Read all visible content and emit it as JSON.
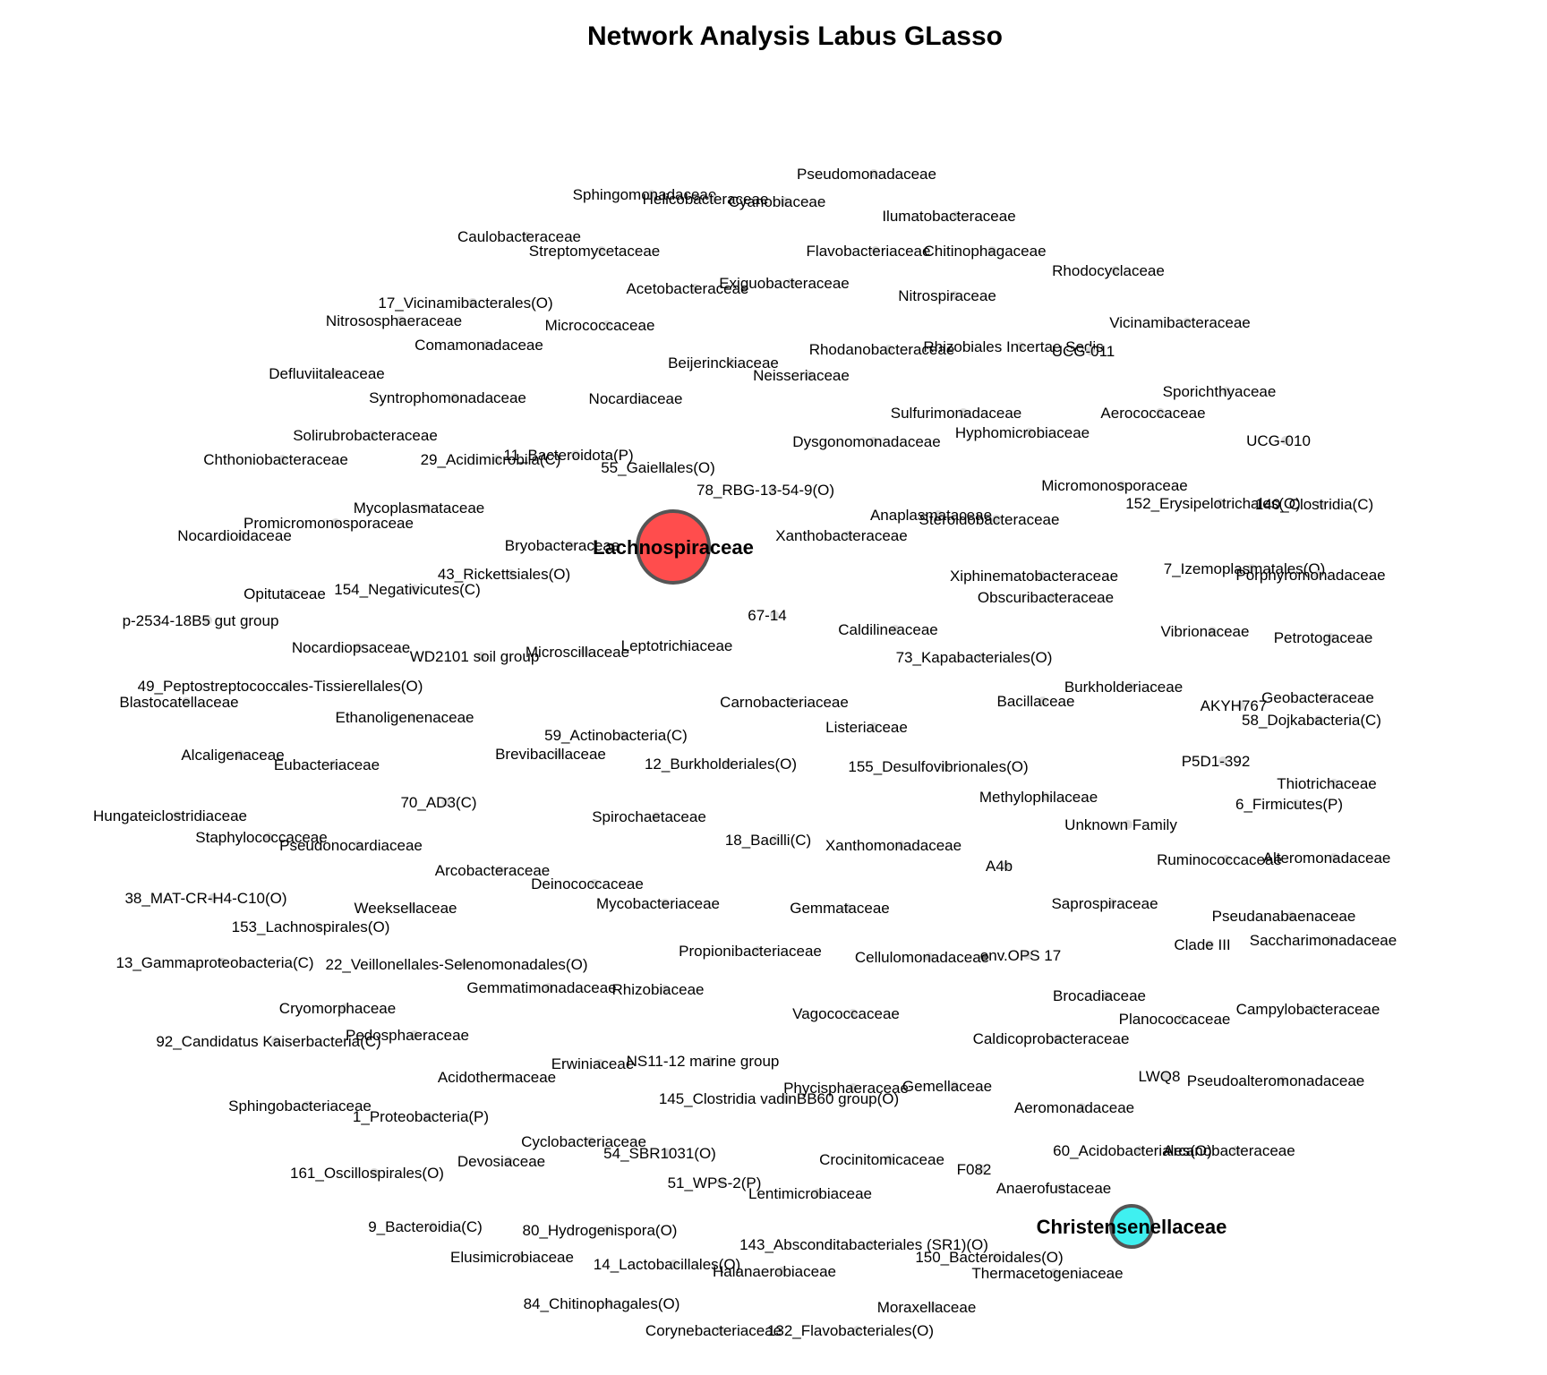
{
  "title": "Network Analysis Labus GLasso",
  "hubs": [
    {
      "label": "Lachnospiraceae",
      "color": "#ff4d4d"
    },
    {
      "label": "Christensenellaceae",
      "color": "#3ff0f0"
    }
  ],
  "nodes": [
    "Pseudomonadaceae",
    "Sphingomonadaceae",
    "Helicobacteraceae",
    "Cyanobiaceae",
    "Ilumatobacteraceae",
    "Caulobacteraceae",
    "Streptomycetaceae",
    "Flavobacteriaceae",
    "Chitinophagaceae",
    "Rhodocyclaceae",
    "Acetobacteraceae",
    "Exiguobacteraceae",
    "Nitrospiraceae",
    "17_Vicinamibacterales(O)",
    "Nitrososphaeraceae",
    "Micrococcaceae",
    "Vicinamibacteraceae",
    "Comamonadaceae",
    "Beijerinckiaceae",
    "Rhodanobacteraceae",
    "Rhizobiales Incertae Sedis",
    "UCG-011",
    "Defluviitaleaceae",
    "Neisseriaceae",
    "Syntrophomonadaceae",
    "Nocardiaceae",
    "Sporichthyaceae",
    "Sulfurimonadaceae",
    "Aerococcaceae",
    "Solirubrobacteraceae",
    "Hyphomicrobiaceae",
    "UCG-010",
    "Chthoniobacteraceae",
    "29_Acidimicrobiia(C)",
    "11_Bacteroidota(P)",
    "Dysgonomonadaceae",
    "55_Gaiellales(O)",
    "Micromonosporaceae",
    "78_RBG-13-54-9(O)",
    "152_Erysipelotrichales(O)",
    "140_Clostridia(C)",
    "Mycoplasmataceae",
    "Anaplasmataceae",
    "Steroidobacteraceae",
    "Promicromonosporaceae",
    "Nocardioidaceae",
    "Xanthobacteraceae",
    "Bryobacteraceae",
    "7_Izemoplasmatales(O)",
    "Xiphinematobacteraceae",
    "Porphyromonadaceae",
    "43_Rickettsiales(O)",
    "154_Negativicutes(C)",
    "Opitutaceae",
    "Obscuribacteraceae",
    "67-14",
    "p-2534-18B5 gut group",
    "Caldilineaceae",
    "Vibrionaceae",
    "Petrotogaceae",
    "Nocardiopsaceae",
    "Leptotrichiaceae",
    "Microscillaceae",
    "WD2101 soil group",
    "73_Kapabacteriales(O)",
    "49_Peptostreptococcales-Tissierellales(O)",
    "Burkholderiaceae",
    "Blastocatellaceae",
    "Carnobacteriaceae",
    "Bacillaceae",
    "Geobacteraceae",
    "AKYH767",
    "Ethanoligenenaceae",
    "58_Dojkabacteria(C)",
    "Listeriaceae",
    "59_Actinobacteria(C)",
    "Brevibacillaceae",
    "Alcaligenaceae",
    "Eubacteriaceae",
    "12_Burkholderiales(O)",
    "155_Desulfovibrionales(O)",
    "P5D1-392",
    "Thiotrichaceae",
    "Methylophilaceae",
    "70_AD3(C)",
    "6_Firmicutes(P)",
    "Hungateiclostridiaceae",
    "Spirochaetaceae",
    "Unknown Family",
    "Staphylococcaceae",
    "18_Bacilli(C)",
    "Pseudonocardiaceae",
    "Xanthomonadaceae",
    "Ruminococcaceae",
    "Alteromonadaceae",
    "A4b",
    "Arcobacteraceae",
    "Deinococcaceae",
    "38_MAT-CR-H4-C10(O)",
    "Saprospiraceae",
    "Weeksellaceae",
    "Mycobacteriaceae",
    "Gemmataceae",
    "Pseudanabaenaceae",
    "153_Lachnospirales(O)",
    "Clade III",
    "Saccharimonadaceae",
    "Propionibacteriaceae",
    "Cellulomonadaceae",
    "env.OPS 17",
    "13_Gammaproteobacteria(C)",
    "22_Veillonellales-Selenomonadales(O)",
    "Gemmatimonadaceae",
    "Rhizobiaceae",
    "Brocadiaceae",
    "Cryomorphaceae",
    "Campylobacteraceae",
    "Vagococcaceae",
    "Planococcaceae",
    "Pedosphaeraceae",
    "92_Candidatus Kaiserbacteria(C)",
    "Caldicoprobacteraceae",
    "NS11-12 marine group",
    "Erwiniaceae",
    "Acidothermaceae",
    "LWQ8",
    "Pseudoalteromonadaceae",
    "Phycisphaeraceae",
    "Gemellaceae",
    "145_Clostridia vadinBB60 group(O)",
    "Sphingobacteriaceae",
    "Aeromonadaceae",
    "1_Proteobacteria(P)",
    "Cyclobacteriaceae",
    "54_SBR1031(O)",
    "Devosiaceae",
    "60_Acidobacteriales(O)",
    "Arcanobacteraceae",
    "Crocinitomicaceae",
    "161_Oscillospirales(O)",
    "F082",
    "51_WPS-2(P)",
    "Lentimicrobiaceae",
    "Anaerofustaceae",
    "9_Bacteroidia(C)",
    "80_Hydrogenispora(O)",
    "143_Absconditabacteriales (SR1)(O)",
    "Elusimicrobiaceae",
    "14_Lactobacillales(O)",
    "150_Bacteroidales(O)",
    "Halanaerobiaceae",
    "Thermacetogeniaceae",
    "84_Chitinophagales(O)",
    "Moraxellaceae",
    "Corynebacteriaceae",
    "132_Flavobacteriales(O)"
  ]
}
